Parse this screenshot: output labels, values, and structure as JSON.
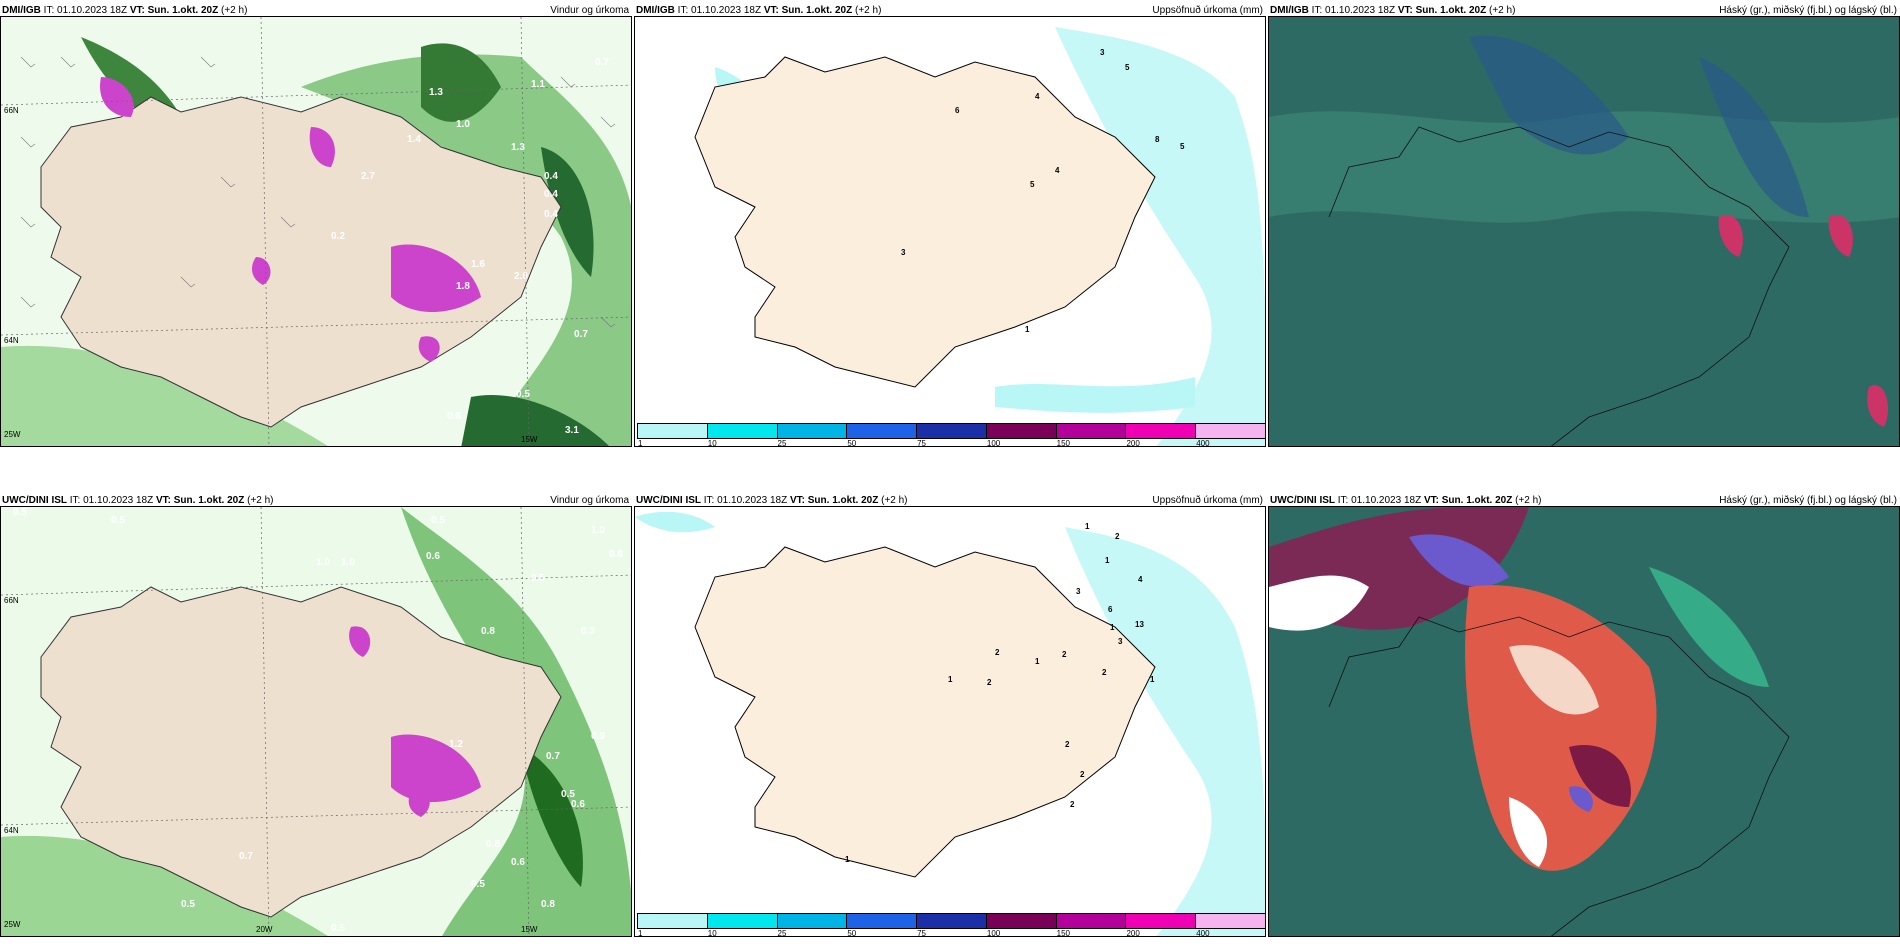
{
  "panels": [
    {
      "source": "DMI/IGB",
      "run": "IT: 01.10.2023 18Z",
      "vt_label": "VT: Sun. 1.okt. 20Z",
      "lead": "(+2 h)",
      "title": "Vindur og úrkoma"
    },
    {
      "source": "DMI/IGB",
      "run": "IT: 01.10.2023 18Z",
      "vt_label": "VT: Sun. 1.okt. 20Z",
      "lead": "(+2 h)",
      "title": "Uppsöfnuð úrkoma (mm)"
    },
    {
      "source": "DMI/IGB",
      "run": "IT: 01.10.2023 18Z",
      "vt_label": "VT: Sun. 1.okt. 20Z",
      "lead": "(+2 h)",
      "title": "Háský (gr.), miðský (fj.bl.) og lágský (bl.)"
    },
    {
      "source": "UWC/DINI ISL",
      "run": "IT: 01.10.2023 18Z",
      "vt_label": "VT: Sun. 1.okt. 20Z",
      "lead": "(+2 h)",
      "title": "Vindur og úrkoma"
    },
    {
      "source": "UWC/DINI ISL",
      "run": "IT: 01.10.2023 18Z",
      "vt_label": "VT: Sun. 1.okt. 20Z",
      "lead": "(+2 h)",
      "title": "Uppsöfnuð úrkoma (mm)"
    },
    {
      "source": "UWC/DINI ISL",
      "run": "IT: 01.10.2023 18Z",
      "vt_label": "VT: Sun. 1.okt. 20Z",
      "lead": "(+2 h)",
      "title": "Háský (gr.), miðský (fj.bl.) og lágský (bl.)"
    }
  ],
  "coord_labels": {
    "lat66": "66N",
    "lat64": "64N",
    "lon25": "25W",
    "lon20": "20W",
    "lon15": "15W"
  },
  "precip_labels_top": [
    "0.7",
    "1.1",
    "1.3",
    "1.0",
    "2.7",
    "0.4",
    "1.4",
    "1.3",
    "0.4",
    "0.4",
    "0.2",
    "1.6",
    "1.8",
    "2.0",
    "0.7",
    "0.5",
    "0.6",
    "3.1"
  ],
  "precip_labels_bottom": [
    "0.5",
    "0.5",
    "1.0",
    "1.0",
    "0.5",
    "0.6",
    "0.5",
    "1.0",
    "0.6",
    "0.8",
    "0.3",
    "1.2",
    "0.9",
    "0.7",
    "0.5",
    "0.8",
    "0.6",
    "0.6",
    "0.5",
    "0.7",
    "0.8",
    "0.5",
    "0.5"
  ],
  "accum_labels_top": [
    "3",
    "5",
    "4",
    "6",
    "8",
    "5",
    "4",
    "5",
    "3",
    "1"
  ],
  "accum_labels_bottom": [
    "1",
    "2",
    "1",
    "4",
    "3",
    "6",
    "13",
    "1",
    "2",
    "2",
    "1",
    "2",
    "1",
    "3",
    "2",
    "1",
    "2",
    "2",
    "2",
    "1"
  ],
  "colorbar": {
    "ticks": [
      "1",
      "10",
      "25",
      "50",
      "75",
      "100",
      "150",
      "200",
      "400"
    ],
    "colors": [
      "#b9f6f6",
      "#00e8ee",
      "#00b4e6",
      "#1e62e8",
      "#1a2fa8",
      "#7a0057",
      "#b4009a",
      "#f000b4",
      "#f5b4f0"
    ]
  },
  "colors": {
    "land": "#fbeedd",
    "sea_cloud": "#2d6a63",
    "ocean": "#ffffff"
  }
}
